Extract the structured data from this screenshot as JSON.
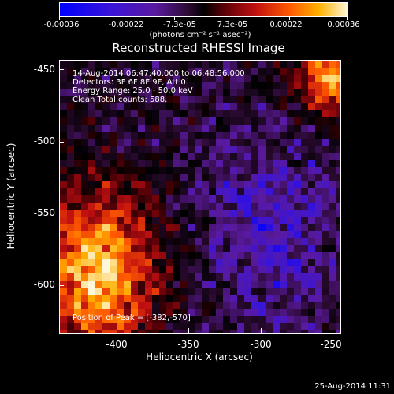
{
  "colorbar": {
    "tick_labels": [
      "-0.00036",
      "-0.00022",
      "-7.3e-05",
      "7.3e-05",
      "0.00022",
      "0.00036"
    ],
    "units": "(photons cm⁻² s⁻¹ asec⁻²)"
  },
  "title": "Reconstructed RHESSI Image",
  "annotations": {
    "time": "14-Aug-2014 06:47:40.000 to 06:48:56.000",
    "detectors": "Detectors: 3F 6F 8F 9F, Att 0",
    "energy": "Energy Range: 25.0 - 50.0 keV",
    "clean": "Clean    Total counts: 588.",
    "peak": "Position of Peak = [-382,-570]"
  },
  "axes": {
    "xlabel": "Heliocentric X (arcsec)",
    "ylabel": "Heliocentric Y (arcsec)",
    "xticks": [
      "-400",
      "-350",
      "-300",
      "-250"
    ],
    "yticks": [
      "-450",
      "-500",
      "-550",
      "-600"
    ]
  },
  "timestamp": "25-Aug-2014 11:31",
  "colors": {
    "background": "#000000",
    "colormap": [
      "#0000ff",
      "#5a1aa0",
      "#000000",
      "#c01010",
      "#ff5a00",
      "#ffb000",
      "#fff8d8"
    ]
  }
}
